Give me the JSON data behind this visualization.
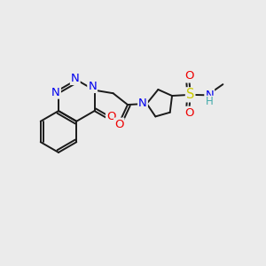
{
  "bg_color": "#ebebeb",
  "bond_color": "#1a1a1a",
  "atom_colors": {
    "N": "#0000ee",
    "O": "#ee0000",
    "S": "#cccc00",
    "NH": "#44aaaa",
    "C": "#1a1a1a"
  },
  "font_size": 8.5,
  "bond_width": 1.4,
  "figsize": [
    3.0,
    3.0
  ],
  "dpi": 100,
  "xlim": [
    0,
    10
  ],
  "ylim": [
    0,
    10
  ]
}
